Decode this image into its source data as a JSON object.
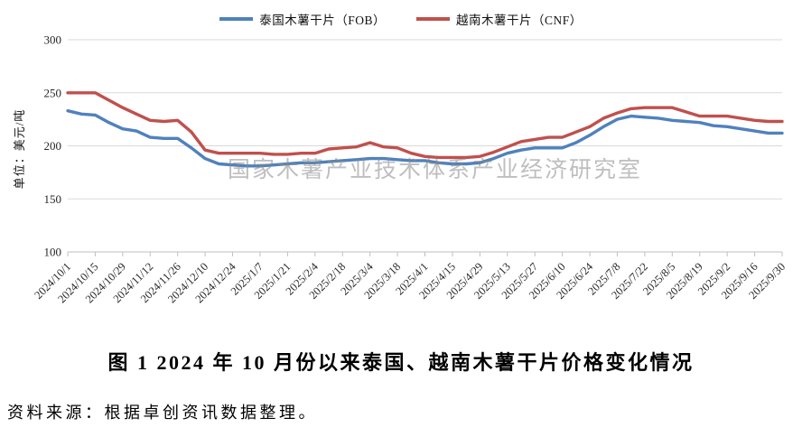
{
  "legend": [
    {
      "label": "泰国木薯干片（FOB）",
      "color": "#4F81BD"
    },
    {
      "label": "越南木薯干片（CNF）",
      "color": "#C0504D"
    }
  ],
  "y_axis_title": "单位：美元/吨",
  "watermark": "国家木薯产业技术体系产业经济研究室",
  "title": "图 1  2024 年 10 月份以来泰国、越南木薯干片价格变化情况",
  "source_note": "资料来源：根据卓创资讯数据整理。",
  "colors": {
    "gridline": "#D9D9D9",
    "axis": "#BFBFBF",
    "tick_text": "#262626"
  },
  "chart_data": {
    "type": "line",
    "title": "图 1  2024 年 10 月份以来泰国、越南木薯干片价格变化情况",
    "ylabel": "单位：美元/吨",
    "xlabel": "",
    "ylim": [
      100,
      300
    ],
    "yticks": [
      100,
      150,
      200,
      250,
      300
    ],
    "grid": true,
    "legend_position": "top",
    "x": [
      "2024/10/1",
      "2024/10/8",
      "2024/10/15",
      "2024/10/22",
      "2024/10/29",
      "2024/11/5",
      "2024/11/12",
      "2024/11/19",
      "2024/11/26",
      "2024/12/3",
      "2024/12/10",
      "2024/12/17",
      "2024/12/24",
      "2024/12/31",
      "2025/1/7",
      "2025/1/14",
      "2025/1/21",
      "2025/1/28",
      "2025/2/4",
      "2025/2/11",
      "2025/2/18",
      "2025/2/25",
      "2025/3/4",
      "2025/3/11",
      "2025/3/18",
      "2025/3/25",
      "2025/4/1",
      "2025/4/8",
      "2025/4/15",
      "2025/4/22",
      "2025/4/29",
      "2025/5/6",
      "2025/5/13",
      "2025/5/20",
      "2025/5/27",
      "2025/6/3",
      "2025/6/10",
      "2025/6/17",
      "2025/6/24",
      "2025/7/1",
      "2025/7/8",
      "2025/7/15",
      "2025/7/22",
      "2025/7/29",
      "2025/8/5",
      "2025/8/12",
      "2025/8/19",
      "2025/8/26",
      "2025/9/2",
      "2025/9/9",
      "2025/9/16",
      "2025/9/23",
      "2025/9/30"
    ],
    "x_tick_labels": [
      "2024/10/1",
      "2024/10/15",
      "2024/10/29",
      "2024/11/12",
      "2024/11/26",
      "2024/12/10",
      "2024/12/24",
      "2025/1/7",
      "2025/1/21",
      "2025/2/4",
      "2025/2/18",
      "2025/3/4",
      "2025/3/18",
      "2025/4/1",
      "2025/4/15",
      "2025/4/29",
      "2025/5/13",
      "2025/5/27",
      "2025/6/10",
      "2025/6/24",
      "2025/7/8",
      "2025/7/22",
      "2025/8/5",
      "2025/8/19",
      "2025/9/2",
      "2025/9/16",
      "2025/9/30"
    ],
    "series": [
      {
        "name": "泰国木薯干片（FOB）",
        "color": "#4F81BD",
        "values": [
          233,
          230,
          229,
          222,
          216,
          214,
          208,
          207,
          207,
          198,
          188,
          183,
          182,
          181,
          181,
          182,
          183,
          184,
          184,
          185,
          186,
          187,
          188,
          188,
          187,
          186,
          186,
          184,
          183,
          183,
          184,
          188,
          193,
          196,
          198,
          198,
          198,
          203,
          210,
          218,
          225,
          228,
          227,
          226,
          224,
          223,
          222,
          219,
          218,
          216,
          214,
          212,
          212
        ]
      },
      {
        "name": "越南木薯干片（CNF）",
        "color": "#C0504D",
        "values": [
          250,
          250,
          250,
          243,
          236,
          230,
          224,
          223,
          224,
          213,
          196,
          193,
          193,
          193,
          193,
          192,
          192,
          193,
          193,
          197,
          198,
          199,
          203,
          199,
          198,
          193,
          190,
          189,
          189,
          189,
          190,
          194,
          199,
          204,
          206,
          208,
          208,
          213,
          218,
          226,
          231,
          235,
          236,
          236,
          236,
          232,
          228,
          228,
          228,
          226,
          224,
          223,
          223
        ]
      }
    ]
  }
}
